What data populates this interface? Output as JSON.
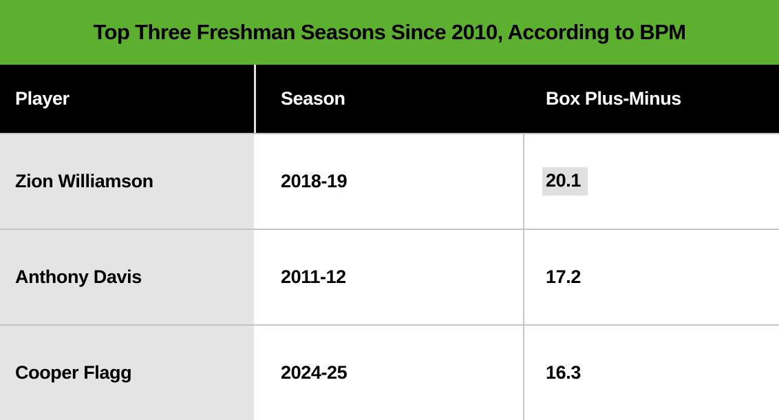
{
  "title": "Top Three Freshman Seasons Since 2010, According to BPM",
  "table": {
    "columns": [
      {
        "label": "Player"
      },
      {
        "label": "Season"
      },
      {
        "label": "Box Plus-Minus"
      }
    ],
    "rows": [
      {
        "player": "Zion Williamson",
        "season": "2018-19",
        "bpm": "20.1",
        "bpm_highlighted": true
      },
      {
        "player": "Anthony Davis",
        "season": "2011-12",
        "bpm": "17.2",
        "bpm_highlighted": false
      },
      {
        "player": "Cooper Flagg",
        "season": "2024-25",
        "bpm": "16.3",
        "bpm_highlighted": false
      }
    ]
  },
  "chart_data": {
    "type": "table",
    "title": "Top Three Freshman Seasons Since 2010, According to BPM",
    "columns": [
      "Player",
      "Season",
      "Box Plus-Minus"
    ],
    "rows": [
      [
        "Zion Williamson",
        "2018-19",
        20.1
      ],
      [
        "Anthony Davis",
        "2011-12",
        17.2
      ],
      [
        "Cooper Flagg",
        "2024-25",
        16.3
      ]
    ]
  },
  "colors": {
    "title_bar_green": "#5DB02F",
    "header_row_black": "#000000",
    "player_column_gray": "#E4E4E4",
    "row_divider_gray": "#C6C6C6",
    "value_highlight_gray": "#E0E0E0",
    "header_text_white": "#FFFFFF",
    "body_text_black": "#000000"
  }
}
